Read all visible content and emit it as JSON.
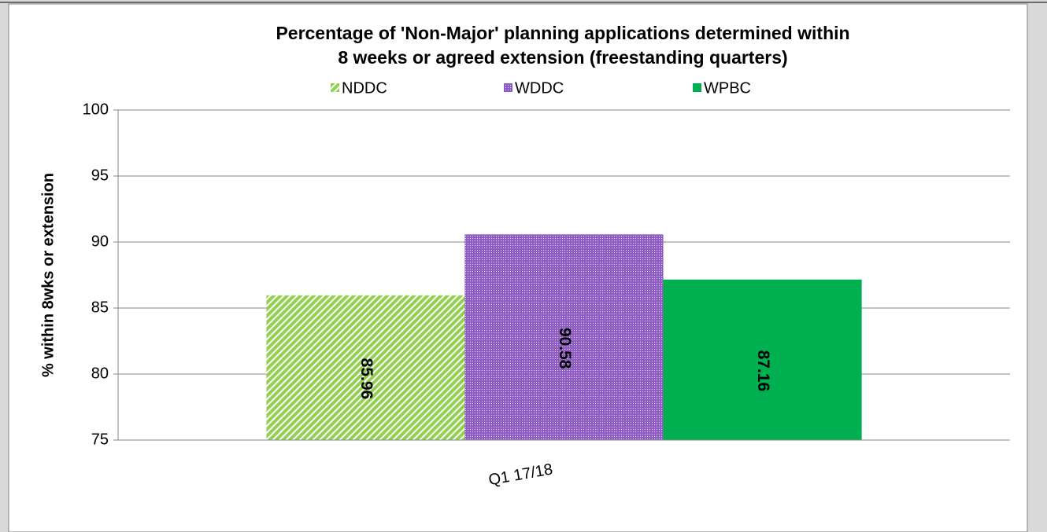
{
  "chart_data": {
    "type": "bar",
    "title": [
      "Percentage of 'Non-Major' planning applications determined within",
      "8 weeks or agreed extension (freestanding quarters)"
    ],
    "y_label": "% within 8wks or extension",
    "categories": [
      "Q1 17/18"
    ],
    "series": [
      {
        "name": "NDDC",
        "color": "#92d050",
        "pattern": "diagonal",
        "label_color": "#000000",
        "values": [
          85.96
        ]
      },
      {
        "name": "WDDC",
        "color": "#8e5cc4",
        "pattern": "dots",
        "label_color": "#ffffff",
        "values": [
          90.58
        ]
      },
      {
        "name": "WPBC",
        "color": "#00b050",
        "pattern": "solid",
        "label_color": "#ffffff",
        "values": [
          87.16
        ]
      }
    ],
    "ylim": [
      75,
      100
    ],
    "yticks": [
      75,
      80,
      85,
      90,
      95,
      100
    ],
    "grid": true,
    "legend": "top"
  }
}
